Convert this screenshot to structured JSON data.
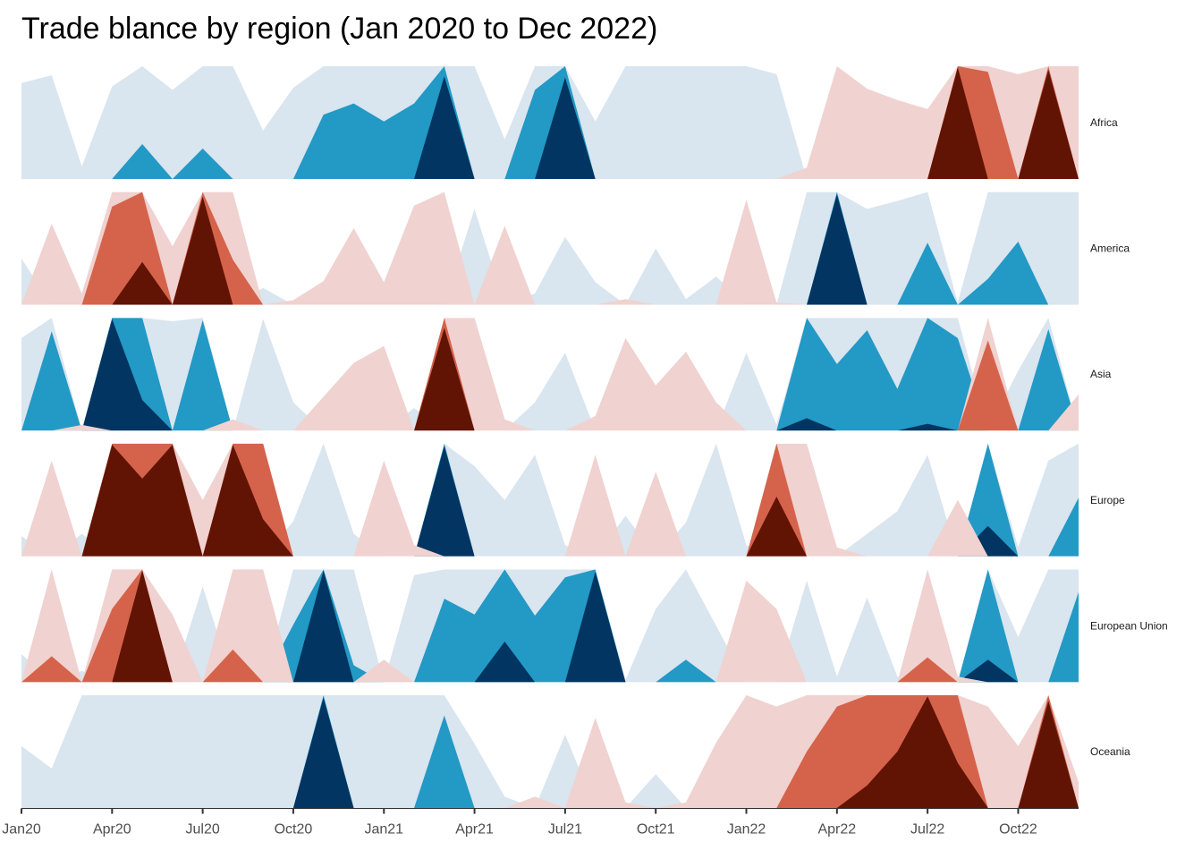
{
  "chart_data": {
    "type": "horizon",
    "title": "Trade blance by region (Jan 2020 to Dec 2022)",
    "x": [
      "Jan20",
      "Feb20",
      "Mar20",
      "Apr20",
      "May20",
      "Jun20",
      "Jul20",
      "Aug20",
      "Sep20",
      "Oct20",
      "Nov20",
      "Dec20",
      "Jan21",
      "Feb21",
      "Mar21",
      "Apr21",
      "May21",
      "Jun21",
      "Jul21",
      "Aug21",
      "Sep21",
      "Oct21",
      "Nov21",
      "Dec21",
      "Jan22",
      "Feb22",
      "Mar22",
      "Apr22",
      "May22",
      "Jun22",
      "Jul22",
      "Aug22",
      "Sep22",
      "Oct22",
      "Nov22",
      "Dec22"
    ],
    "x_ticks": [
      "Jan20",
      "Apr20",
      "Jul20",
      "Oct20",
      "Jan21",
      "Apr21",
      "Jul21",
      "Oct21",
      "Jan22",
      "Apr22",
      "Jul22",
      "Oct22"
    ],
    "band_colors": {
      "positive": [
        "#d9e5ef",
        "#2399c5",
        "#023561"
      ],
      "negative": [
        "#f0d2d0",
        "#d5634b",
        "#611404"
      ]
    },
    "band_scale": 1,
    "series": [
      {
        "name": "Africa",
        "values": [
          0.85,
          0.92,
          0.11,
          0.82,
          1.31,
          0.79,
          1.27,
          1.0,
          0.43,
          0.81,
          1.57,
          1.67,
          1.51,
          1.67,
          2.91,
          1.0,
          0.35,
          1.79,
          2.9,
          0.51,
          1.0,
          1.0,
          1.0,
          1.0,
          1.0,
          0.93,
          -0.1,
          -1.0,
          -0.8,
          -0.7,
          -0.62,
          -2.99,
          -1.95,
          -0.93,
          -2.97,
          -1.0
        ]
      },
      {
        "name": "America",
        "values": [
          0.41,
          -0.72,
          -0.1,
          -1.87,
          -2.38,
          -0.52,
          -2.96,
          -1.4,
          0.15,
          -0.04,
          -0.21,
          -0.68,
          -0.2,
          -0.88,
          -1.0,
          0.85,
          -0.7,
          0.1,
          0.6,
          0.2,
          -0.05,
          0.5,
          0.05,
          0.25,
          -0.93,
          -0.02,
          1.0,
          2.98,
          0.85,
          0.92,
          1.55,
          0.02,
          1.23,
          1.56,
          1.0,
          1.0
        ]
      },
      {
        "name": "Asia",
        "values": [
          0.82,
          1.88,
          -0.05,
          2.99,
          2.27,
          0.97,
          1.98,
          -0.1,
          0.99,
          0.25,
          -0.3,
          -0.6,
          -0.75,
          0.2,
          -2.91,
          -1.0,
          -0.1,
          0.25,
          0.69,
          -0.13,
          -0.82,
          -0.4,
          -0.7,
          -0.25,
          0.69,
          0.05,
          2.11,
          1.59,
          1.89,
          1.37,
          2.06,
          1.82,
          -1.8,
          0.53,
          1.9,
          -0.32
        ]
      },
      {
        "name": "Europe",
        "values": [
          0.18,
          -0.85,
          0.2,
          -2.99,
          -2.69,
          -2.99,
          -0.5,
          -2.99,
          -2.33,
          0.31,
          1.0,
          0.2,
          -0.85,
          -0.1,
          2.98,
          0.8,
          0.5,
          0.9,
          0.1,
          -0.9,
          0.36,
          -0.75,
          0.3,
          1.0,
          0.1,
          -2.53,
          -1.0,
          -0.08,
          0.2,
          0.4,
          0.9,
          -0.5,
          2.27,
          0.08,
          0.85,
          1.52
        ]
      },
      {
        "name": "European Union",
        "values": [
          0.25,
          -1.23,
          0.1,
          -1.65,
          -2.99,
          -0.6,
          0.85,
          -1.29,
          -1.0,
          1.51,
          2.99,
          1.15,
          -0.2,
          0.95,
          1.74,
          1.6,
          2.36,
          1.59,
          1.93,
          2.98,
          0.02,
          0.65,
          1.2,
          0.5,
          -0.9,
          -0.65,
          0.9,
          0.05,
          0.75,
          0.05,
          -1.22,
          -0.05,
          2.2,
          0.4,
          1.0,
          1.8
        ]
      },
      {
        "name": "Oceania",
        "values": [
          0.55,
          0.35,
          1.0,
          1.0,
          1.0,
          1.0,
          1.0,
          1.0,
          1.0,
          1.0,
          2.98,
          1.0,
          1.0,
          1.0,
          1.82,
          0.57,
          0.1,
          -0.1,
          0.65,
          -0.8,
          -0.05,
          0.3,
          -0.05,
          -0.58,
          -1.0,
          -0.9,
          -1.5,
          -1.9,
          -2.2,
          -2.5,
          -2.99,
          -2.4,
          -0.9,
          -0.55,
          -2.95,
          -0.23
        ]
      }
    ]
  }
}
